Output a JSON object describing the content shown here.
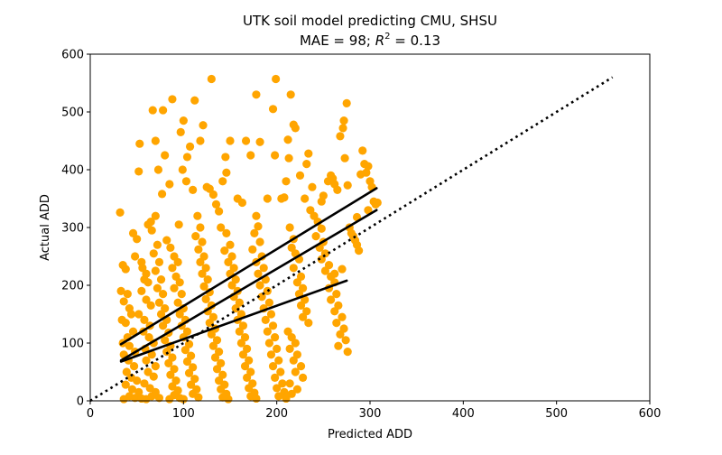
{
  "chart_data": {
    "type": "scatter",
    "title_line1": "UTK soil model predicting CMU, SHSU",
    "title_line2_prefix": "MAE = 98; ",
    "title_line2_r": "R",
    "title_line2_sup": "2",
    "title_line2_suffix": " = 0.13",
    "xlabel": "Predicted ADD",
    "ylabel": "Actual ADD",
    "xlim": [
      0,
      600
    ],
    "ylim": [
      0,
      600
    ],
    "xticks": [
      "0",
      "100",
      "200",
      "300",
      "400",
      "500",
      "600"
    ],
    "yticks": [
      "0",
      "100",
      "200",
      "300",
      "400",
      "500",
      "600"
    ],
    "grid": false,
    "point_color": "#FFA500",
    "line_color": "#000000",
    "points": [
      [
        32,
        326
      ],
      [
        35,
        235
      ],
      [
        38,
        228
      ],
      [
        33,
        190
      ],
      [
        40,
        185
      ],
      [
        36,
        172
      ],
      [
        42,
        160
      ],
      [
        34,
        140
      ],
      [
        38,
        135
      ],
      [
        44,
        150
      ],
      [
        46,
        120
      ],
      [
        40,
        110
      ],
      [
        35,
        100
      ],
      [
        42,
        95
      ],
      [
        48,
        85
      ],
      [
        36,
        80
      ],
      [
        41,
        70
      ],
      [
        47,
        60
      ],
      [
        39,
        50
      ],
      [
        44,
        40
      ],
      [
        50,
        35
      ],
      [
        38,
        28
      ],
      [
        45,
        20
      ],
      [
        52,
        15
      ],
      [
        42,
        8
      ],
      [
        48,
        5
      ],
      [
        55,
        4
      ],
      [
        36,
        3
      ],
      [
        46,
        290
      ],
      [
        50,
        280
      ],
      [
        53,
        445
      ],
      [
        52,
        397
      ],
      [
        48,
        250
      ],
      [
        55,
        240
      ],
      [
        56,
        230
      ],
      [
        60,
        220
      ],
      [
        58,
        210
      ],
      [
        62,
        205
      ],
      [
        55,
        190
      ],
      [
        60,
        175
      ],
      [
        65,
        165
      ],
      [
        52,
        150
      ],
      [
        58,
        140
      ],
      [
        64,
        130
      ],
      [
        57,
        120
      ],
      [
        63,
        110
      ],
      [
        68,
        100
      ],
      [
        59,
        90
      ],
      [
        66,
        80
      ],
      [
        60,
        70
      ],
      [
        70,
        60
      ],
      [
        62,
        50
      ],
      [
        68,
        42
      ],
      [
        58,
        30
      ],
      [
        64,
        22
      ],
      [
        70,
        15
      ],
      [
        66,
        8
      ],
      [
        74,
        5
      ],
      [
        60,
        3
      ],
      [
        62,
        305
      ],
      [
        65,
        310
      ],
      [
        70,
        320
      ],
      [
        66,
        295
      ],
      [
        72,
        270
      ],
      [
        68,
        255
      ],
      [
        74,
        240
      ],
      [
        70,
        225
      ],
      [
        76,
        210
      ],
      [
        72,
        195
      ],
      [
        78,
        185
      ],
      [
        74,
        170
      ],
      [
        80,
        160
      ],
      [
        76,
        150
      ],
      [
        82,
        140
      ],
      [
        78,
        130
      ],
      [
        84,
        118
      ],
      [
        80,
        105
      ],
      [
        86,
        95
      ],
      [
        82,
        85
      ],
      [
        88,
        75
      ],
      [
        84,
        65
      ],
      [
        90,
        55
      ],
      [
        86,
        45
      ],
      [
        92,
        35
      ],
      [
        88,
        25
      ],
      [
        94,
        18
      ],
      [
        90,
        10
      ],
      [
        96,
        5
      ],
      [
        85,
        3
      ],
      [
        67,
        503
      ],
      [
        70,
        450
      ],
      [
        73,
        400
      ],
      [
        78,
        503
      ],
      [
        77,
        358
      ],
      [
        80,
        425
      ],
      [
        85,
        375
      ],
      [
        88,
        522
      ],
      [
        82,
        278
      ],
      [
        86,
        265
      ],
      [
        90,
        250
      ],
      [
        94,
        240
      ],
      [
        88,
        230
      ],
      [
        92,
        215
      ],
      [
        96,
        205
      ],
      [
        90,
        195
      ],
      [
        98,
        185
      ],
      [
        94,
        170
      ],
      [
        100,
        160
      ],
      [
        96,
        150
      ],
      [
        102,
        140
      ],
      [
        98,
        130
      ],
      [
        104,
        120
      ],
      [
        100,
        110
      ],
      [
        106,
        98
      ],
      [
        102,
        88
      ],
      [
        108,
        78
      ],
      [
        104,
        68
      ],
      [
        110,
        58
      ],
      [
        106,
        48
      ],
      [
        112,
        38
      ],
      [
        108,
        28
      ],
      [
        114,
        20
      ],
      [
        110,
        12
      ],
      [
        116,
        6
      ],
      [
        100,
        3
      ],
      [
        95,
        305
      ],
      [
        97,
        465
      ],
      [
        100,
        485
      ],
      [
        99,
        400
      ],
      [
        104,
        422
      ],
      [
        103,
        380
      ],
      [
        107,
        440
      ],
      [
        110,
        365
      ],
      [
        112,
        520
      ],
      [
        115,
        320
      ],
      [
        118,
        300
      ],
      [
        113,
        285
      ],
      [
        120,
        275
      ],
      [
        116,
        262
      ],
      [
        122,
        250
      ],
      [
        118,
        240
      ],
      [
        124,
        230
      ],
      [
        120,
        220
      ],
      [
        126,
        210
      ],
      [
        122,
        198
      ],
      [
        128,
        188
      ],
      [
        124,
        176
      ],
      [
        130,
        165
      ],
      [
        126,
        155
      ],
      [
        132,
        145
      ],
      [
        128,
        135
      ],
      [
        134,
        125
      ],
      [
        130,
        115
      ],
      [
        136,
        105
      ],
      [
        132,
        95
      ],
      [
        138,
        85
      ],
      [
        134,
        75
      ],
      [
        140,
        65
      ],
      [
        136,
        55
      ],
      [
        142,
        45
      ],
      [
        138,
        35
      ],
      [
        144,
        28
      ],
      [
        140,
        20
      ],
      [
        146,
        12
      ],
      [
        142,
        6
      ],
      [
        148,
        3
      ],
      [
        118,
        450
      ],
      [
        121,
        477
      ],
      [
        125,
        370
      ],
      [
        128,
        367
      ],
      [
        130,
        557
      ],
      [
        132,
        357
      ],
      [
        135,
        340
      ],
      [
        138,
        328
      ],
      [
        142,
        380
      ],
      [
        145,
        422
      ],
      [
        140,
        300
      ],
      [
        146,
        290
      ],
      [
        150,
        270
      ],
      [
        144,
        260
      ],
      [
        152,
        250
      ],
      [
        148,
        240
      ],
      [
        154,
        230
      ],
      [
        150,
        220
      ],
      [
        156,
        210
      ],
      [
        152,
        200
      ],
      [
        158,
        190
      ],
      [
        154,
        180
      ],
      [
        160,
        170
      ],
      [
        156,
        160
      ],
      [
        162,
        150
      ],
      [
        158,
        140
      ],
      [
        164,
        130
      ],
      [
        160,
        120
      ],
      [
        166,
        110
      ],
      [
        162,
        100
      ],
      [
        168,
        90
      ],
      [
        164,
        80
      ],
      [
        170,
        70
      ],
      [
        166,
        60
      ],
      [
        172,
        50
      ],
      [
        168,
        40
      ],
      [
        174,
        30
      ],
      [
        170,
        22
      ],
      [
        176,
        14
      ],
      [
        172,
        8
      ],
      [
        178,
        4
      ],
      [
        146,
        395
      ],
      [
        150,
        450
      ],
      [
        158,
        350
      ],
      [
        163,
        343
      ],
      [
        167,
        450
      ],
      [
        172,
        425
      ],
      [
        178,
        320
      ],
      [
        180,
        302
      ],
      [
        176,
        290
      ],
      [
        182,
        275
      ],
      [
        174,
        262
      ],
      [
        184,
        250
      ],
      [
        178,
        240
      ],
      [
        186,
        230
      ],
      [
        180,
        220
      ],
      [
        188,
        210
      ],
      [
        182,
        200
      ],
      [
        190,
        190
      ],
      [
        184,
        180
      ],
      [
        192,
        170
      ],
      [
        186,
        160
      ],
      [
        194,
        150
      ],
      [
        188,
        140
      ],
      [
        196,
        130
      ],
      [
        190,
        120
      ],
      [
        198,
        110
      ],
      [
        192,
        100
      ],
      [
        200,
        90
      ],
      [
        194,
        80
      ],
      [
        202,
        70
      ],
      [
        196,
        60
      ],
      [
        204,
        50
      ],
      [
        198,
        40
      ],
      [
        206,
        30
      ],
      [
        200,
        22
      ],
      [
        208,
        15
      ],
      [
        202,
        8
      ],
      [
        210,
        4
      ],
      [
        178,
        530
      ],
      [
        182,
        448
      ],
      [
        190,
        350
      ],
      [
        196,
        505
      ],
      [
        199,
        557
      ],
      [
        198,
        425
      ],
      [
        205,
        350
      ],
      [
        208,
        352
      ],
      [
        210,
        380
      ],
      [
        213,
        420
      ],
      [
        212,
        452
      ],
      [
        215,
        530
      ],
      [
        214,
        300
      ],
      [
        218,
        280
      ],
      [
        216,
        265
      ],
      [
        220,
        255
      ],
      [
        224,
        245
      ],
      [
        218,
        230
      ],
      [
        226,
        215
      ],
      [
        222,
        205
      ],
      [
        228,
        195
      ],
      [
        224,
        185
      ],
      [
        230,
        175
      ],
      [
        226,
        165
      ],
      [
        232,
        155
      ],
      [
        228,
        145
      ],
      [
        234,
        135
      ],
      [
        212,
        120
      ],
      [
        216,
        110
      ],
      [
        220,
        100
      ],
      [
        214,
        90
      ],
      [
        222,
        80
      ],
      [
        218,
        70
      ],
      [
        226,
        60
      ],
      [
        220,
        50
      ],
      [
        228,
        40
      ],
      [
        214,
        30
      ],
      [
        222,
        20
      ],
      [
        216,
        12
      ],
      [
        210,
        6
      ],
      [
        218,
        478
      ],
      [
        220,
        472
      ],
      [
        225,
        390
      ],
      [
        230,
        350
      ],
      [
        232,
        410
      ],
      [
        234,
        428
      ],
      [
        238,
        370
      ],
      [
        236,
        330
      ],
      [
        240,
        320
      ],
      [
        244,
        310
      ],
      [
        248,
        298
      ],
      [
        242,
        285
      ],
      [
        250,
        275
      ],
      [
        246,
        265
      ],
      [
        252,
        255
      ],
      [
        248,
        245
      ],
      [
        256,
        235
      ],
      [
        252,
        225
      ],
      [
        258,
        215
      ],
      [
        262,
        205
      ],
      [
        256,
        195
      ],
      [
        264,
        185
      ],
      [
        258,
        175
      ],
      [
        266,
        165
      ],
      [
        262,
        155
      ],
      [
        270,
        145
      ],
      [
        264,
        135
      ],
      [
        272,
        125
      ],
      [
        268,
        115
      ],
      [
        274,
        105
      ],
      [
        266,
        95
      ],
      [
        276,
        85
      ],
      [
        248,
        345
      ],
      [
        250,
        355
      ],
      [
        255,
        380
      ],
      [
        258,
        390
      ],
      [
        260,
        385
      ],
      [
        262,
        375
      ],
      [
        265,
        365
      ],
      [
        268,
        458
      ],
      [
        271,
        472
      ],
      [
        272,
        485
      ],
      [
        275,
        515
      ],
      [
        273,
        420
      ],
      [
        276,
        373
      ],
      [
        278,
        300
      ],
      [
        280,
        290
      ],
      [
        282,
        285
      ],
      [
        284,
        278
      ],
      [
        286,
        270
      ],
      [
        288,
        260
      ],
      [
        290,
        392
      ],
      [
        292,
        433
      ],
      [
        294,
        410
      ],
      [
        296,
        395
      ],
      [
        298,
        406
      ],
      [
        300,
        380
      ],
      [
        302,
        370
      ],
      [
        304,
        345
      ],
      [
        306,
        340
      ],
      [
        308,
        343
      ],
      [
        298,
        330
      ],
      [
        286,
        318
      ],
      [
        270,
        228
      ],
      [
        262,
        220
      ]
    ],
    "lines": [
      {
        "x1": 33,
        "y1": 98,
        "x2": 307,
        "y2": 368
      },
      {
        "x1": 33,
        "y1": 70,
        "x2": 307,
        "y2": 330
      },
      {
        "x1": 33,
        "y1": 68,
        "x2": 275,
        "y2": 208
      }
    ],
    "identity_line": {
      "x1": 0,
      "y1": 0,
      "x2": 560,
      "y2": 560
    }
  }
}
